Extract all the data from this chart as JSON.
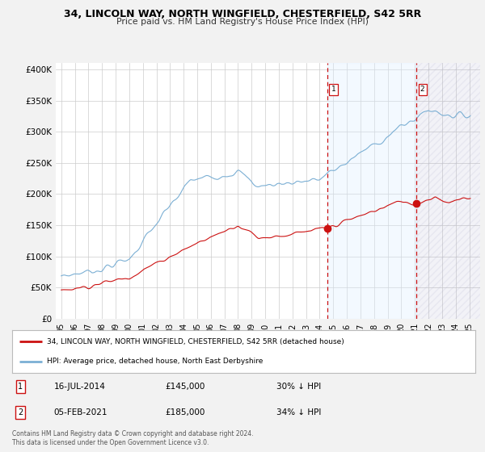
{
  "title_line1": "34, LINCOLN WAY, NORTH WINGFIELD, CHESTERFIELD, S42 5RR",
  "title_line2": "Price paid vs. HM Land Registry's House Price Index (HPI)",
  "ylabel_ticks": [
    "£0",
    "£50K",
    "£100K",
    "£150K",
    "£200K",
    "£250K",
    "£300K",
    "£350K",
    "£400K"
  ],
  "ytick_values": [
    0,
    50000,
    100000,
    150000,
    200000,
    250000,
    300000,
    350000,
    400000
  ],
  "ylim": [
    0,
    410000
  ],
  "hpi_color": "#7bafd4",
  "price_color": "#cc1111",
  "vline_color": "#cc1111",
  "shade_color": "#ddeeff",
  "annotation1": {
    "label": "1",
    "date": "16-JUL-2014",
    "price": "£145,000",
    "note": "30% ↓ HPI"
  },
  "annotation2": {
    "label": "2",
    "date": "05-FEB-2021",
    "price": "£185,000",
    "note": "34% ↓ HPI"
  },
  "legend_line1": "34, LINCOLN WAY, NORTH WINGFIELD, CHESTERFIELD, S42 5RR (detached house)",
  "legend_line2": "HPI: Average price, detached house, North East Derbyshire",
  "footer": "Contains HM Land Registry data © Crown copyright and database right 2024.\nThis data is licensed under the Open Government Licence v3.0.",
  "background_color": "#f2f2f2",
  "plot_bg_color": "#ffffff",
  "vline1_x": 2014.54,
  "vline2_x": 2021.09,
  "dot1_x": 2014.54,
  "dot1_y": 145000,
  "dot2_x": 2021.09,
  "dot2_y": 185000,
  "xlim_left": 1994.6,
  "xlim_right": 2025.8
}
